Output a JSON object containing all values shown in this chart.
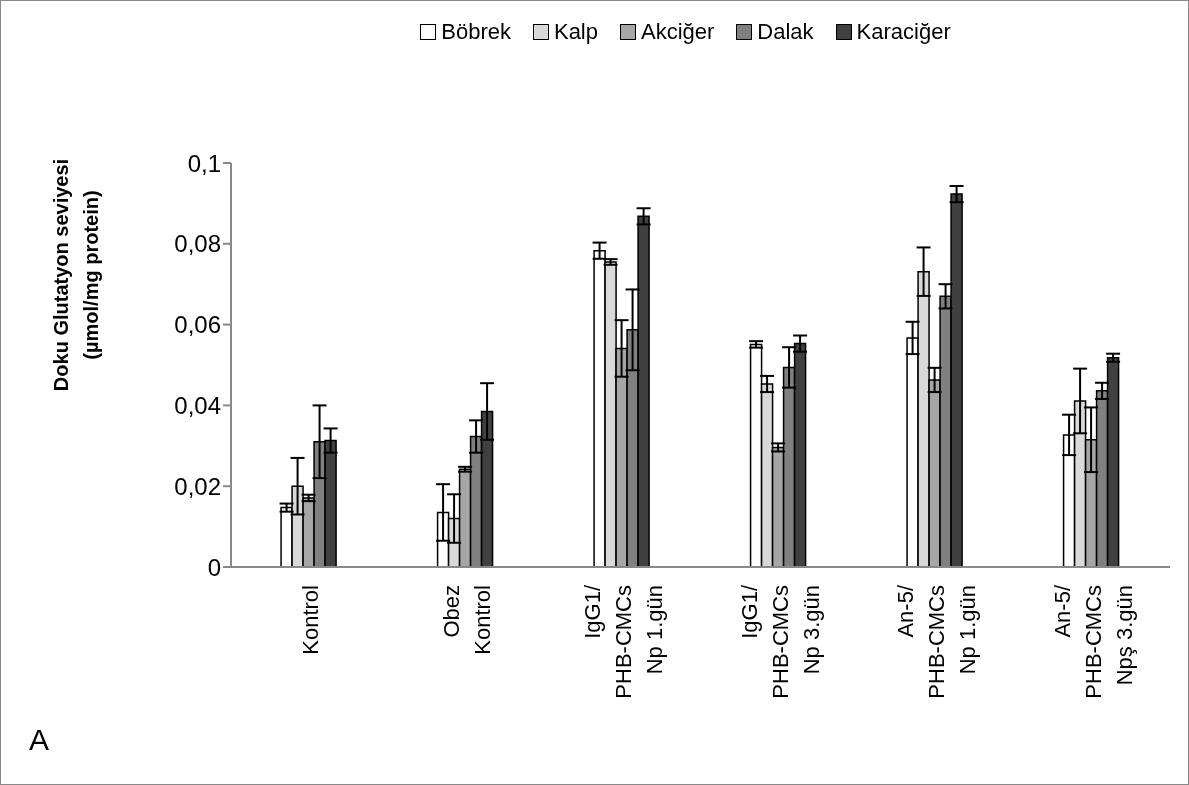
{
  "chart_data": {
    "type": "bar",
    "ylabel": "Doku Glutatyon seviyesi\n(µmol/mg protein)",
    "categories": [
      "Kontrol",
      "Obez\nKontrol",
      "IgG1/\nPHB-CMCs\nNp 1.gün",
      "IgG1/\nPHB-CMCs\nNp 3.gün",
      "An-5/\nPHB-CMCs\nNp 1.gün",
      "An-5/\nPHB-CMCs\nNpş 3.gün"
    ],
    "series": [
      {
        "name": "Böbrek",
        "color": "#ffffff",
        "values": [
          0.0147,
          0.0135,
          0.0783,
          0.0551,
          0.0567,
          0.0327
        ],
        "errors": [
          0.001,
          0.007,
          0.002,
          0.0008,
          0.004,
          0.005
        ]
      },
      {
        "name": "Kalp",
        "color": "#d9d9d9",
        "values": [
          0.02,
          0.012,
          0.0755,
          0.0453,
          0.0731,
          0.0411
        ],
        "errors": [
          0.007,
          0.006,
          0.0007,
          0.002,
          0.006,
          0.008
        ]
      },
      {
        "name": "Akciğer",
        "color": "#a6a6a6",
        "values": [
          0.0171,
          0.0242,
          0.0541,
          0.0296,
          0.0463,
          0.0315
        ],
        "errors": [
          0.0008,
          0.0006,
          0.007,
          0.001,
          0.003,
          0.008
        ]
      },
      {
        "name": "Dalak",
        "color": "#808080",
        "values": [
          0.031,
          0.0323,
          0.0587,
          0.0494,
          0.067,
          0.0436
        ],
        "errors": [
          0.009,
          0.004,
          0.01,
          0.005,
          0.003,
          0.002
        ]
      },
      {
        "name": "Karaciğer",
        "color": "#404040",
        "values": [
          0.0313,
          0.0385,
          0.0868,
          0.0553,
          0.0923,
          0.0518
        ],
        "errors": [
          0.003,
          0.007,
          0.002,
          0.002,
          0.002,
          0.001
        ]
      }
    ],
    "ylim": [
      0,
      0.1
    ],
    "yticks": [
      {
        "value": 0,
        "label": "0"
      },
      {
        "value": 0.02,
        "label": "0,02"
      },
      {
        "value": 0.04,
        "label": "0,04"
      },
      {
        "value": 0.06,
        "label": "0,06"
      },
      {
        "value": 0.08,
        "label": "0,08"
      },
      {
        "value": 0.1,
        "label": "0,1"
      }
    ],
    "grid": false,
    "legend": "top",
    "annotations": [
      "A"
    ]
  }
}
